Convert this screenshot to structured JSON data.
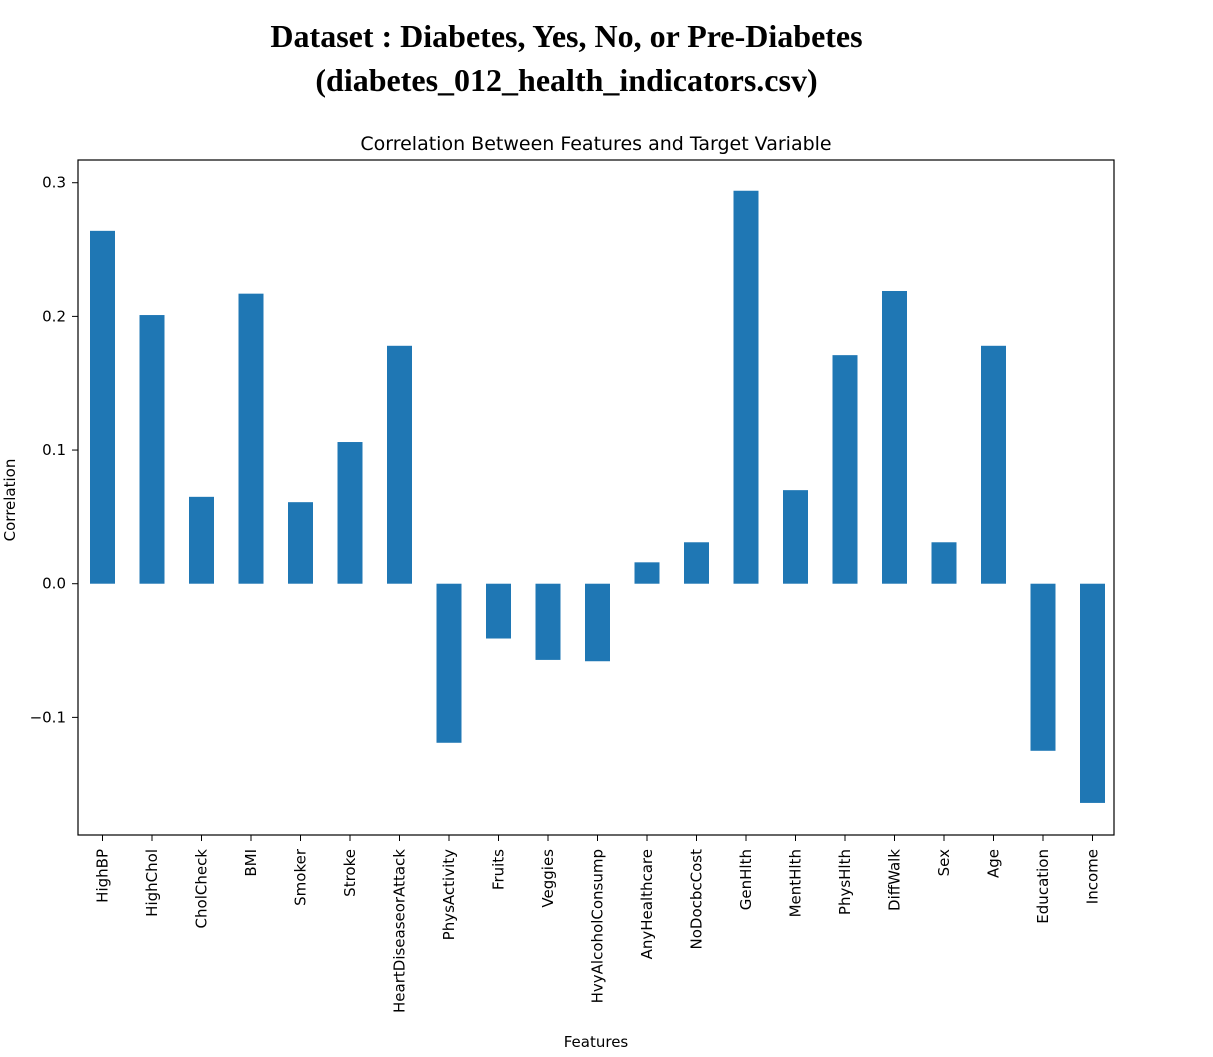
{
  "header": {
    "line1": "Dataset : Diabetes, Yes, No, or Pre-Diabetes",
    "line2": "(diabetes_012_health_indicators.csv)"
  },
  "chart_data": {
    "type": "bar",
    "title": "Correlation Between Features and Target Variable",
    "xlabel": "Features",
    "ylabel": "Correlation",
    "categories": [
      "HighBP",
      "HighChol",
      "CholCheck",
      "BMI",
      "Smoker",
      "Stroke",
      "HeartDiseaseorAttack",
      "PhysActivity",
      "Fruits",
      "Veggies",
      "HvyAlcoholConsump",
      "AnyHealthcare",
      "NoDocbcCost",
      "GenHlth",
      "MentHlth",
      "PhysHlth",
      "DiffWalk",
      "Sex",
      "Age",
      "Education",
      "Income"
    ],
    "values": [
      0.264,
      0.201,
      0.065,
      0.217,
      0.061,
      0.106,
      0.178,
      -0.119,
      -0.041,
      -0.057,
      -0.058,
      0.016,
      0.031,
      0.294,
      0.07,
      0.171,
      0.219,
      0.031,
      0.178,
      -0.125,
      -0.164
    ],
    "yticks": [
      -0.1,
      0.0,
      0.1,
      0.2,
      0.3
    ],
    "ytick_labels": [
      "−0.1",
      "0.0",
      "0.1",
      "0.2",
      "0.3"
    ],
    "ylim": [
      -0.188,
      0.317
    ],
    "grid": false,
    "bar_color": "#1f77b4"
  }
}
